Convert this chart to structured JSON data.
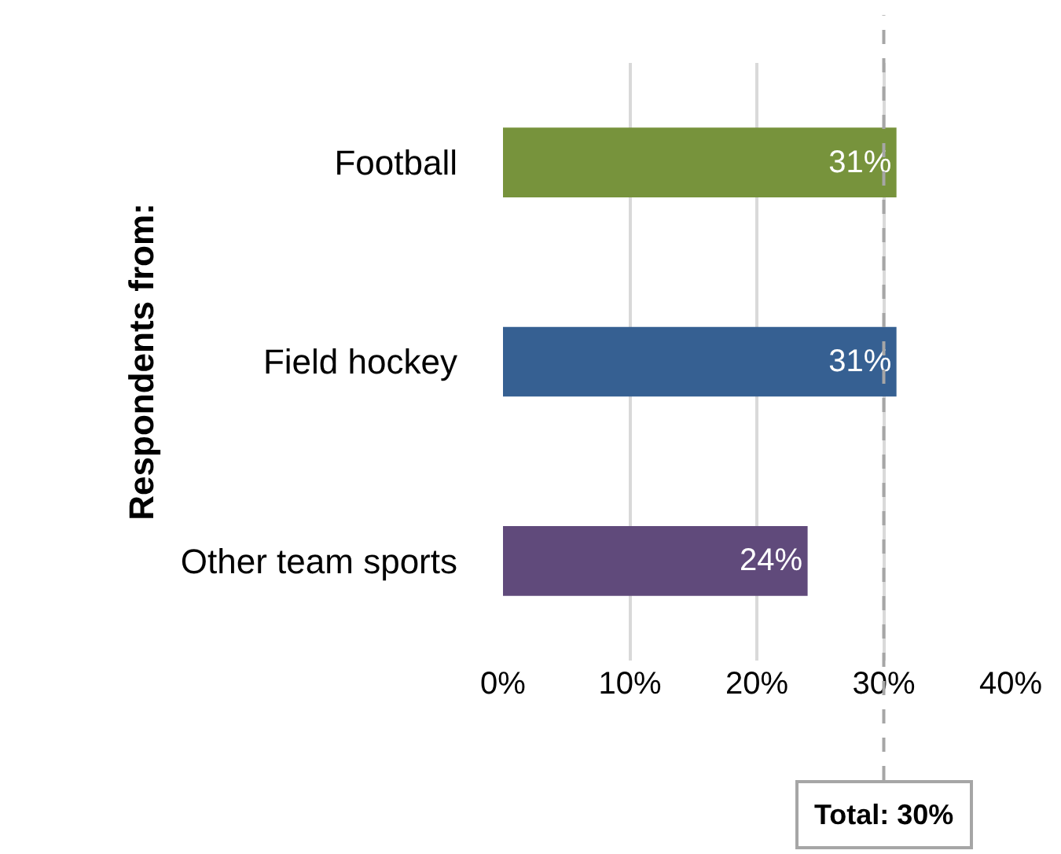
{
  "chart_data": {
    "type": "bar",
    "orientation": "horizontal",
    "ylabel": "Respondents from:",
    "categories": [
      "Football",
      "Field hockey",
      "Other team sports"
    ],
    "values": [
      31,
      31,
      24
    ],
    "colors": [
      "#77933c",
      "#366092",
      "#604a7b"
    ],
    "value_labels": [
      "31%",
      "31%",
      "24%"
    ],
    "xlim": [
      0,
      40
    ],
    "xticks": [
      {
        "value": 0,
        "label": "0%"
      },
      {
        "value": 10,
        "label": "10%"
      },
      {
        "value": 20,
        "label": "20%"
      },
      {
        "value": 30,
        "label": "30%"
      },
      {
        "value": 40,
        "label": "40%"
      }
    ],
    "grid": "x",
    "legend": false,
    "ref_lines": [
      {
        "axis": "x",
        "value": 30,
        "label": "Total: 30%",
        "color": "#a6a6a6",
        "line_style": "dashed"
      }
    ]
  }
}
